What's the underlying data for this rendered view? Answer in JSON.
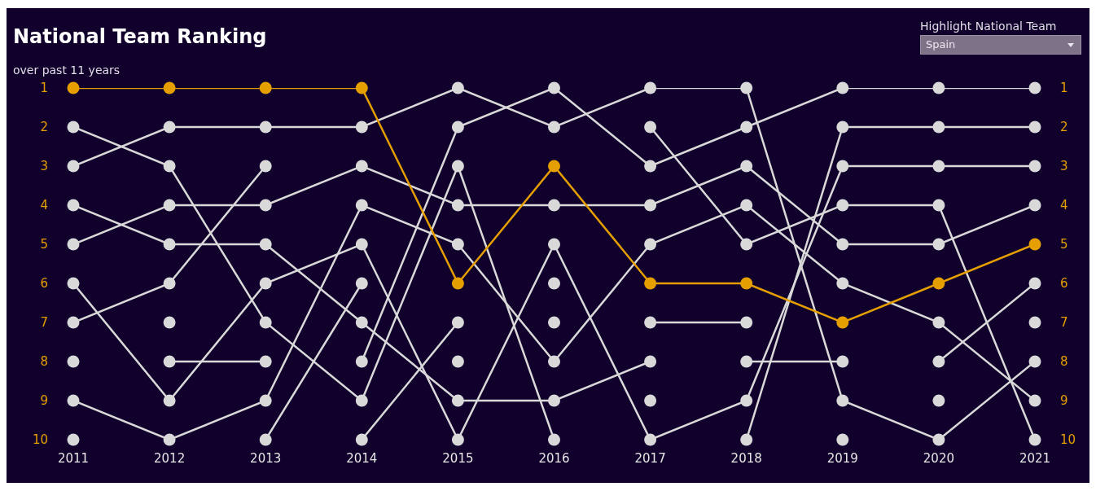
{
  "chart_data": {
    "type": "line",
    "title": "National Team Ranking",
    "subtitle": "over past 11 years",
    "annotations": [
      "Highlight National Team"
    ],
    "x": [
      2011,
      2012,
      2013,
      2014,
      2015,
      2016,
      2017,
      2018,
      2019,
      2020,
      2021
    ],
    "xlim": [
      2011,
      2021
    ],
    "xticks": [
      2011,
      2012,
      2013,
      2014,
      2015,
      2016,
      2017,
      2018,
      2019,
      2020,
      2021
    ],
    "ylim": [
      10,
      1
    ],
    "yticks": [
      1,
      2,
      3,
      4,
      5,
      6,
      7,
      8,
      9,
      10
    ],
    "y2lim": [
      10,
      1
    ],
    "y2ticks": [
      1,
      2,
      3,
      4,
      5,
      6,
      7,
      8,
      9,
      10
    ],
    "grid": false,
    "legend": false,
    "marker": "circle",
    "line_style": "solid",
    "series": [
      {
        "color": "#d9d9d9",
        "values": [
          2,
          3,
          7,
          9,
          3,
          10,
          null,
          null,
          null,
          null,
          null
        ]
      },
      {
        "color": "#d9d9d9",
        "values": [
          3,
          2,
          2,
          2,
          1,
          2,
          1,
          1,
          9,
          10,
          8
        ]
      },
      {
        "color": "#d9d9d9",
        "values": [
          4,
          5,
          5,
          7,
          9,
          9,
          8,
          null,
          null,
          null,
          null
        ]
      },
      {
        "color": "#d9d9d9",
        "values": [
          5,
          4,
          4,
          3,
          4,
          4,
          4,
          3,
          5,
          5,
          4
        ]
      },
      {
        "color": "#d9d9d9",
        "values": [
          6,
          9,
          6,
          5,
          10,
          5,
          10,
          9,
          3,
          3,
          3
        ]
      },
      {
        "color": "#d9d9d9",
        "values": [
          7,
          6,
          3,
          null,
          null,
          null,
          null,
          null,
          null,
          null,
          null
        ]
      },
      {
        "color": "#d9d9d9",
        "values": [
          8,
          null,
          null,
          null,
          null,
          null,
          null,
          null,
          null,
          null,
          null
        ]
      },
      {
        "color": "#d9d9d9",
        "values": [
          9,
          10,
          9,
          4,
          5,
          8,
          5,
          4,
          6,
          7,
          9
        ]
      },
      {
        "color": "#d9d9d9",
        "values": [
          10,
          null,
          null,
          null,
          null,
          null,
          null,
          null,
          null,
          null,
          null
        ]
      },
      {
        "color": "#d9d9d9",
        "values": [
          null,
          7,
          null,
          null,
          null,
          null,
          null,
          null,
          null,
          null,
          null
        ]
      },
      {
        "color": "#d9d9d9",
        "values": [
          null,
          8,
          8,
          null,
          null,
          null,
          null,
          null,
          null,
          null,
          null
        ]
      },
      {
        "color": "#d9d9d9",
        "values": [
          null,
          null,
          10,
          6,
          null,
          null,
          null,
          null,
          null,
          null,
          null
        ]
      },
      {
        "color": "#d9d9d9",
        "values": [
          null,
          null,
          null,
          8,
          2,
          1,
          3,
          2,
          1,
          1,
          1
        ]
      },
      {
        "color": "#d9d9d9",
        "values": [
          null,
          null,
          null,
          10,
          7,
          null,
          null,
          null,
          null,
          null,
          null
        ]
      },
      {
        "color": "#d9d9d9",
        "values": [
          null,
          null,
          null,
          null,
          8,
          null,
          null,
          null,
          null,
          null,
          null
        ]
      },
      {
        "color": "#d9d9d9",
        "values": [
          null,
          null,
          null,
          null,
          null,
          6,
          null,
          null,
          null,
          null,
          null
        ]
      },
      {
        "color": "#d9d9d9",
        "values": [
          null,
          null,
          null,
          null,
          null,
          7,
          null,
          null,
          null,
          null,
          null
        ]
      },
      {
        "color": "#d9d9d9",
        "values": [
          null,
          null,
          null,
          null,
          null,
          null,
          2,
          5,
          4,
          4,
          10
        ]
      },
      {
        "color": "#d9d9d9",
        "values": [
          null,
          null,
          null,
          null,
          null,
          null,
          7,
          7,
          null,
          null,
          null
        ]
      },
      {
        "color": "#d9d9d9",
        "values": [
          null,
          null,
          null,
          null,
          null,
          null,
          9,
          null,
          null,
          null,
          null
        ]
      },
      {
        "color": "#d9d9d9",
        "values": [
          null,
          null,
          null,
          null,
          null,
          null,
          null,
          8,
          8,
          null,
          null
        ]
      },
      {
        "color": "#d9d9d9",
        "values": [
          null,
          null,
          null,
          null,
          null,
          null,
          null,
          10,
          2,
          2,
          2
        ]
      },
      {
        "color": "#d9d9d9",
        "values": [
          null,
          null,
          null,
          null,
          null,
          null,
          null,
          null,
          10,
          null,
          null
        ]
      },
      {
        "color": "#d9d9d9",
        "values": [
          null,
          null,
          null,
          null,
          null,
          null,
          null,
          null,
          null,
          8,
          6
        ]
      },
      {
        "color": "#d9d9d9",
        "values": [
          null,
          null,
          null,
          null,
          null,
          null,
          null,
          null,
          null,
          9,
          null
        ]
      },
      {
        "color": "#d9d9d9",
        "values": [
          null,
          null,
          null,
          null,
          null,
          null,
          null,
          null,
          null,
          null,
          7
        ]
      },
      {
        "name": "Spain",
        "color": "#e69f00",
        "values": [
          1,
          1,
          1,
          1,
          6,
          3,
          6,
          6,
          7,
          6,
          5
        ]
      }
    ]
  }
}
